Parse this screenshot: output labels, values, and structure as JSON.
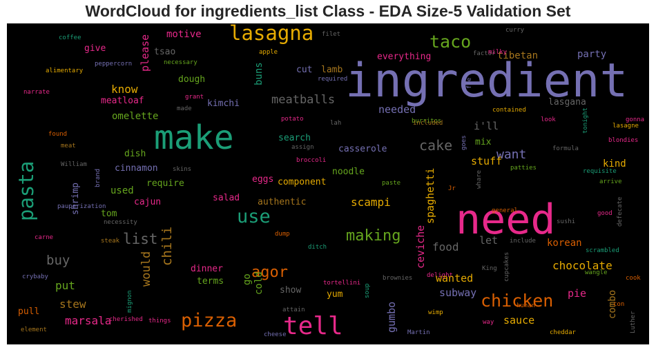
{
  "title": "WordCloud for ingredients_list Class - EDA Size-5 Validation Set",
  "colors": {
    "background": "#000000",
    "purple": "#7570b3",
    "green": "#1b9e77",
    "orange": "#d95f02",
    "pink": "#e7298a",
    "lime": "#66a61e",
    "gold": "#e6ab02",
    "brown": "#a6761d",
    "gray": "#666666"
  },
  "words": [
    {
      "text": "ingredient",
      "c": "purple"
    },
    {
      "text": "need",
      "c": "pink"
    },
    {
      "text": "make",
      "c": "green"
    },
    {
      "text": "tell",
      "c": "pink"
    },
    {
      "text": "pasta",
      "c": "green"
    },
    {
      "text": "lasagna",
      "c": "gold"
    },
    {
      "text": "taco",
      "c": "lime"
    },
    {
      "text": "pizza",
      "c": "orange"
    },
    {
      "text": "chicken",
      "c": "orange"
    },
    {
      "text": "use",
      "c": "green"
    },
    {
      "text": "making",
      "c": "lime"
    },
    {
      "text": "agor",
      "c": "orange"
    },
    {
      "text": "cake",
      "c": "gray"
    },
    {
      "text": "list",
      "c": "gray"
    },
    {
      "text": "chili",
      "c": "brown"
    },
    {
      "text": "buy",
      "c": "gray"
    },
    {
      "text": "want",
      "c": "purple"
    },
    {
      "text": "chocolate",
      "c": "gold"
    },
    {
      "text": "meatballs",
      "c": "gray"
    },
    {
      "text": "tibetan",
      "c": "brown"
    },
    {
      "text": "party",
      "c": "purple"
    },
    {
      "text": "curry",
      "c": "gray"
    },
    {
      "text": "factor",
      "c": "gray"
    },
    {
      "text": "milky",
      "c": "pink"
    },
    {
      "text": "motive",
      "c": "pink"
    },
    {
      "text": "please",
      "c": "pink"
    },
    {
      "text": "give",
      "c": "pink"
    },
    {
      "text": "tsao",
      "c": "gray"
    },
    {
      "text": "coffee",
      "c": "green"
    },
    {
      "text": "peppercorn",
      "c": "purple"
    },
    {
      "text": "alimentary",
      "c": "gold"
    },
    {
      "text": "necessary",
      "c": "lime"
    },
    {
      "text": "apple",
      "c": "gold"
    },
    {
      "text": "filet",
      "c": "gray"
    },
    {
      "text": "required",
      "c": "purple"
    },
    {
      "text": "everything",
      "c": "pink"
    },
    {
      "text": "know",
      "c": "gold"
    },
    {
      "text": "dough",
      "c": "lime"
    },
    {
      "text": "cut",
      "c": "purple"
    },
    {
      "text": "lamb",
      "c": "brown"
    },
    {
      "text": "buns",
      "c": "green"
    },
    {
      "text": "meatloaf",
      "c": "pink"
    },
    {
      "text": "omelette",
      "c": "lime"
    },
    {
      "text": "kimchi",
      "c": "purple"
    },
    {
      "text": "grant",
      "c": "pink"
    },
    {
      "text": "made",
      "c": "gray"
    },
    {
      "text": "narrate",
      "c": "pink"
    },
    {
      "text": "needed",
      "c": "purple"
    },
    {
      "text": "lasgana",
      "c": "gray"
    },
    {
      "text": "i'll",
      "c": "gray"
    },
    {
      "text": "contained",
      "c": "gold"
    },
    {
      "text": "gonna",
      "c": "pink"
    },
    {
      "text": "look",
      "c": "pink"
    },
    {
      "text": "lasagne",
      "c": "gold"
    },
    {
      "text": "tonight",
      "c": "green"
    },
    {
      "text": "blondies",
      "c": "pink"
    },
    {
      "text": "formula",
      "c": "gray"
    },
    {
      "text": "foe",
      "c": "purple"
    },
    {
      "text": "burritos",
      "c": "lime"
    },
    {
      "text": "included",
      "c": "brown"
    },
    {
      "text": "lah",
      "c": "gray"
    },
    {
      "text": "potato",
      "c": "pink"
    },
    {
      "text": "found",
      "c": "orange"
    },
    {
      "text": "meat",
      "c": "brown"
    },
    {
      "text": "search",
      "c": "green"
    },
    {
      "text": "assign",
      "c": "gray"
    },
    {
      "text": "goes",
      "c": "purple"
    },
    {
      "text": "mix",
      "c": "lime"
    },
    {
      "text": "dish",
      "c": "lime"
    },
    {
      "text": "casserole",
      "c": "purple"
    },
    {
      "text": "stuff",
      "c": "gold"
    },
    {
      "text": "kind",
      "c": "gold"
    },
    {
      "text": "William",
      "c": "gray"
    },
    {
      "text": "brand",
      "c": "purple"
    },
    {
      "text": "cinnamon",
      "c": "purple"
    },
    {
      "text": "skins",
      "c": "gray"
    },
    {
      "text": "broccoli",
      "c": "pink"
    },
    {
      "text": "noodle",
      "c": "lime"
    },
    {
      "text": "patties",
      "c": "lime"
    },
    {
      "text": "requisite",
      "c": "green"
    },
    {
      "text": "require",
      "c": "lime"
    },
    {
      "text": "eggs",
      "c": "pink"
    },
    {
      "text": "component",
      "c": "gold"
    },
    {
      "text": "spaghetti",
      "c": "gold"
    },
    {
      "text": "paste",
      "c": "lime"
    },
    {
      "text": "Jr",
      "c": "orange"
    },
    {
      "text": "whare",
      "c": "gray"
    },
    {
      "text": "arrive",
      "c": "lime"
    },
    {
      "text": "shrimp",
      "c": "purple"
    },
    {
      "text": "used",
      "c": "lime"
    },
    {
      "text": "cajun",
      "c": "pink"
    },
    {
      "text": "salad",
      "c": "pink"
    },
    {
      "text": "authentic",
      "c": "brown"
    },
    {
      "text": "scampi",
      "c": "gold"
    },
    {
      "text": "general",
      "c": "orange"
    },
    {
      "text": "defecate",
      "c": "gray"
    },
    {
      "text": "tom",
      "c": "lime"
    },
    {
      "text": "pauperization",
      "c": "purple"
    },
    {
      "text": "necessity",
      "c": "gray"
    },
    {
      "text": "good",
      "c": "pink"
    },
    {
      "text": "sushi",
      "c": "gray"
    },
    {
      "text": "carne",
      "c": "pink"
    },
    {
      "text": "steak",
      "c": "brown"
    },
    {
      "text": "dump",
      "c": "orange"
    },
    {
      "text": "ditch",
      "c": "green"
    },
    {
      "text": "ceviche",
      "c": "pink"
    },
    {
      "text": "food",
      "c": "gray"
    },
    {
      "text": "let",
      "c": "gray"
    },
    {
      "text": "include",
      "c": "gray"
    },
    {
      "text": "korean",
      "c": "orange"
    },
    {
      "text": "scrambled",
      "c": "green"
    },
    {
      "text": "would",
      "c": "brown"
    },
    {
      "text": "dinner",
      "c": "pink"
    },
    {
      "text": "go",
      "c": "lime"
    },
    {
      "text": "cold",
      "c": "lime"
    },
    {
      "text": "terms",
      "c": "lime"
    },
    {
      "text": "King",
      "c": "gray"
    },
    {
      "text": "cupcakes",
      "c": "gray"
    },
    {
      "text": "wangle",
      "c": "lime"
    },
    {
      "text": "cook",
      "c": "orange"
    },
    {
      "text": "crybaby",
      "c": "purple"
    },
    {
      "text": "put",
      "c": "lime"
    },
    {
      "text": "show",
      "c": "gray"
    },
    {
      "text": "brownies",
      "c": "gray"
    },
    {
      "text": "delight",
      "c": "pink"
    },
    {
      "text": "wanted",
      "c": "gold"
    },
    {
      "text": "tortellini",
      "c": "pink"
    },
    {
      "text": "pie",
      "c": "pink"
    },
    {
      "text": "combo",
      "c": "brown"
    },
    {
      "text": "stew",
      "c": "brown"
    },
    {
      "text": "mignon",
      "c": "green"
    },
    {
      "text": "yum",
      "c": "gold"
    },
    {
      "text": "subway",
      "c": "purple"
    },
    {
      "text": "hunan",
      "c": "orange"
    },
    {
      "text": "con",
      "c": "orange"
    },
    {
      "text": "pull",
      "c": "orange"
    },
    {
      "text": "attain",
      "c": "gray"
    },
    {
      "text": "soup",
      "c": "green"
    },
    {
      "text": "gumbo",
      "c": "purple"
    },
    {
      "text": "marsala",
      "c": "pink"
    },
    {
      "text": "cherished",
      "c": "pink"
    },
    {
      "text": "things",
      "c": "pink"
    },
    {
      "text": "sauce",
      "c": "gold"
    },
    {
      "text": "wimp",
      "c": "gold"
    },
    {
      "text": "way",
      "c": "pink"
    },
    {
      "text": "element",
      "c": "brown"
    },
    {
      "text": "cheese",
      "c": "purple"
    },
    {
      "text": "Martin",
      "c": "purple"
    },
    {
      "text": "cheddar",
      "c": "gold"
    },
    {
      "text": "Luther",
      "c": "gray"
    }
  ]
}
